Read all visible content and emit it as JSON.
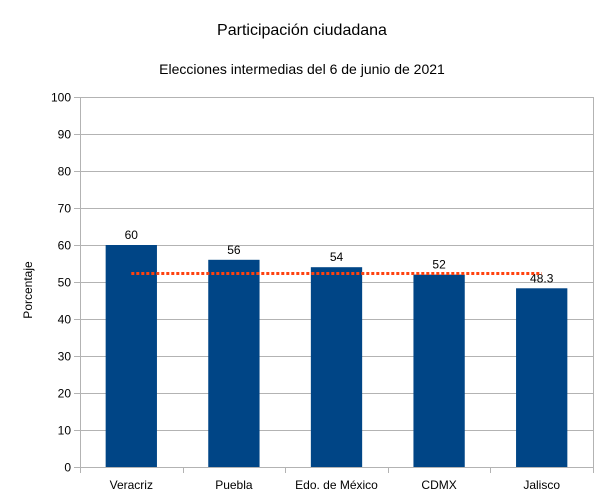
{
  "chart_data": {
    "type": "bar",
    "title": "Participación ciudadana",
    "subtitle": "Elecciones intermedias del 6 de junio de 2021",
    "xlabel": "",
    "ylabel": "Porcentaje",
    "ylim": [
      0,
      100
    ],
    "yticks": [
      0,
      10,
      20,
      30,
      40,
      50,
      60,
      70,
      80,
      90,
      100
    ],
    "categories": [
      "Veracriz",
      "Puebla",
      "Edo. de México",
      "CDMX",
      "Jalisco"
    ],
    "values": [
      60,
      56,
      54,
      52,
      48.3
    ],
    "value_labels": [
      "60",
      "56",
      "54",
      "52",
      "48.3"
    ],
    "reference_line": {
      "value": 52.3,
      "style": "dotted"
    },
    "grid": true,
    "legend": "none",
    "colors": {
      "bar": "#004586",
      "reference_line": "#ff420e",
      "grid": "#b3b3b3",
      "axis": "#b3b3b3"
    }
  }
}
